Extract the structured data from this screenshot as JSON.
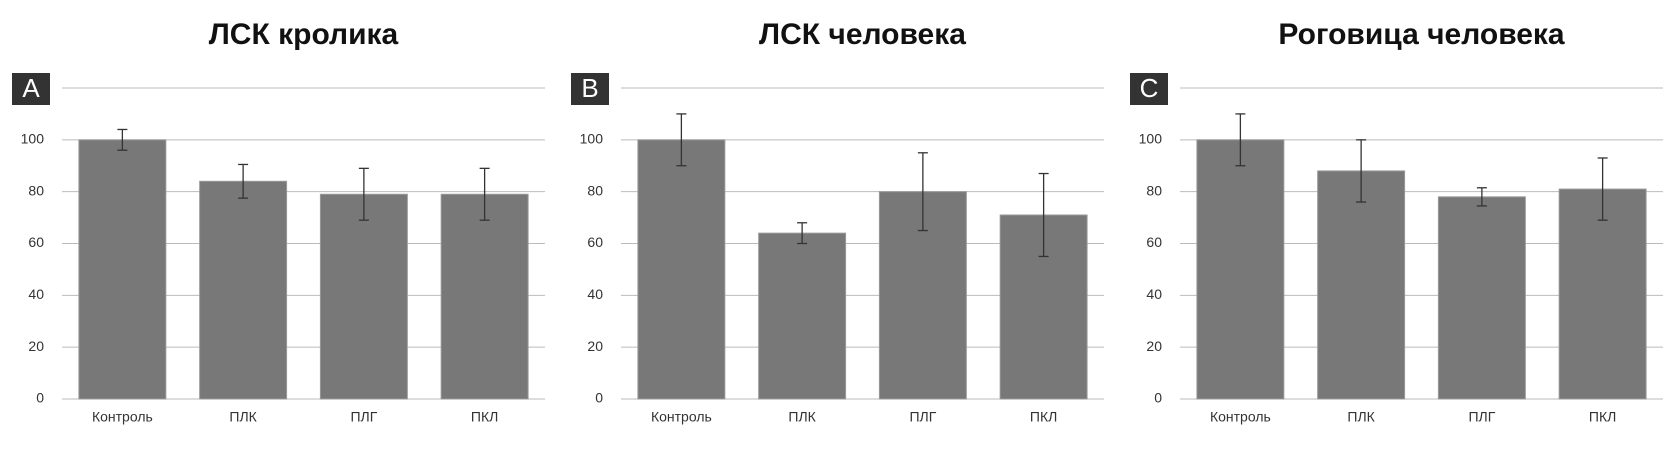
{
  "chart_data": [
    {
      "type": "bar",
      "title": "ЛСК кролика",
      "panel_label": "A",
      "categories": [
        "Контроль",
        "ПЛК",
        "ПЛГ",
        "ПКЛ"
      ],
      "values": [
        100,
        84,
        79,
        79
      ],
      "errors": [
        4,
        6.5,
        10,
        10
      ],
      "color": "#787878",
      "ylim": [
        0,
        120
      ],
      "yticks": [
        0,
        20,
        40,
        60,
        80,
        100
      ],
      "grid": true
    },
    {
      "type": "bar",
      "title": "ЛСК человека",
      "panel_label": "B",
      "categories": [
        "Контроль",
        "ПЛК",
        "ПЛГ",
        "ПКЛ"
      ],
      "values": [
        100,
        64,
        80,
        71
      ],
      "errors": [
        10,
        4,
        15,
        16
      ],
      "color": "#787878",
      "ylim": [
        0,
        120
      ],
      "yticks": [
        0,
        20,
        40,
        60,
        80,
        100
      ],
      "grid": true
    },
    {
      "type": "bar",
      "title": "Роговица человека",
      "panel_label": "C",
      "categories": [
        "Контроль",
        "ПЛК",
        "ПЛГ",
        "ПКЛ"
      ],
      "values": [
        100,
        88,
        78,
        81
      ],
      "errors": [
        10,
        12,
        3.5,
        12
      ],
      "color": "#787878",
      "ylim": [
        0,
        120
      ],
      "yticks": [
        0,
        20,
        40,
        60,
        80,
        100
      ],
      "grid": true
    }
  ]
}
